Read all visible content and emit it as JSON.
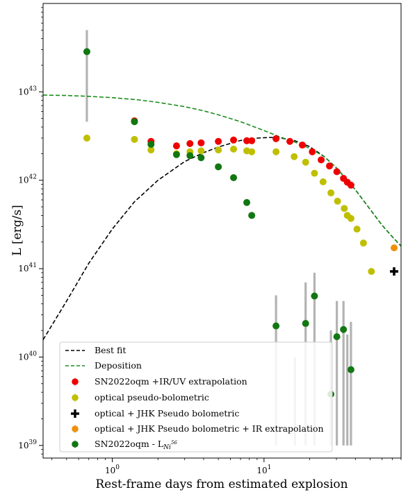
{
  "chart_data": {
    "type": "scatter",
    "xlabel": "Rest-frame days from estimated explosion",
    "ylabel": "L [erg/s]",
    "xscale": "log",
    "yscale": "log",
    "xlim": [
      0.35,
      80
    ],
    "ylim": [
      7.2e+38,
      1e+44
    ],
    "x_ticks": [
      {
        "value": 1,
        "base": "10",
        "exp": "0"
      },
      {
        "value": 10,
        "base": "10",
        "exp": "1"
      }
    ],
    "y_ticks": [
      {
        "value": 1e+39,
        "base": "10",
        "exp": "39"
      },
      {
        "value": 1e+40,
        "base": "10",
        "exp": "40"
      },
      {
        "value": 1e+41,
        "base": "10",
        "exp": "41"
      },
      {
        "value": 1e+42,
        "base": "10",
        "exp": "42"
      },
      {
        "value": 1e+43,
        "base": "10",
        "exp": "43"
      }
    ],
    "legend_position": "lower-left",
    "lines": [
      {
        "name": "Best fit",
        "color": "#000000",
        "style": "dashed",
        "points": [
          [
            0.35,
            1.57e+40
          ],
          [
            0.5,
            4.3e+40
          ],
          [
            0.7,
            1.15e+41
          ],
          [
            1.0,
            2.8e+41
          ],
          [
            1.4,
            5.7e+41
          ],
          [
            2.0,
            1e+42
          ],
          [
            3.0,
            1.63e+42
          ],
          [
            4.0,
            2.05e+42
          ],
          [
            5.0,
            2.38e+42
          ],
          [
            7.0,
            2.82e+42
          ],
          [
            9.0,
            3e+42
          ],
          [
            11.0,
            3.05e+42
          ],
          [
            13.0,
            3e+42
          ],
          [
            16.0,
            2.8e+42
          ],
          [
            20.0,
            2.4e+42
          ],
          [
            25.0,
            1.85e+42
          ],
          [
            30.0,
            1.38e+42
          ],
          [
            35.0,
            1.02e+42
          ],
          [
            40.0,
            7.8e+41
          ],
          [
            50.0,
            4.7e+41
          ],
          [
            60.0,
            3.1e+41
          ],
          [
            70.0,
            2.3e+41
          ],
          [
            80.0,
            1.8e+41
          ]
        ]
      },
      {
        "name": "Deposition",
        "color": "#1a8c1a",
        "style": "dashed",
        "points": [
          [
            0.35,
            9.2e+42
          ],
          [
            0.5,
            9.1e+42
          ],
          [
            0.7,
            8.9e+42
          ],
          [
            1.0,
            8.6e+42
          ],
          [
            1.5,
            8.1e+42
          ],
          [
            2.0,
            7.6e+42
          ],
          [
            3.0,
            6.8e+42
          ],
          [
            4.0,
            6.1e+42
          ],
          [
            5.0,
            5.5e+42
          ],
          [
            7.0,
            4.6e+42
          ],
          [
            10.0,
            3.65e+42
          ],
          [
            13.0,
            3.05e+42
          ],
          [
            16.0,
            2.7e+42
          ],
          [
            20.0,
            2.3e+42
          ],
          [
            25.0,
            1.85e+42
          ],
          [
            30.0,
            1.38e+42
          ],
          [
            35.0,
            1.02e+42
          ],
          [
            40.0,
            7.8e+41
          ],
          [
            50.0,
            4.7e+41
          ],
          [
            60.0,
            3.1e+41
          ],
          [
            70.0,
            2.3e+41
          ],
          [
            80.0,
            1.8e+41
          ]
        ]
      }
    ],
    "series": [
      {
        "name": "SN2022oqm +IR/UV extrapolation",
        "color": "#ee0000",
        "points": [
          [
            1.4,
            4.7e+42
          ],
          [
            1.8,
            2.75e+42
          ],
          [
            2.65,
            2.45e+42
          ],
          [
            3.25,
            2.6e+42
          ],
          [
            3.85,
            2.65e+42
          ],
          [
            5.0,
            2.75e+42
          ],
          [
            6.3,
            2.85e+42
          ],
          [
            7.7,
            2.8e+42
          ],
          [
            8.3,
            2.8e+42
          ],
          [
            12.0,
            2.95e+42
          ],
          [
            14.8,
            2.75e+42
          ],
          [
            17.9,
            2.5e+42
          ],
          [
            20.8,
            2.1e+42
          ],
          [
            23.8,
            1.7e+42
          ],
          [
            27.0,
            1.45e+42
          ],
          [
            30.2,
            1.25e+42
          ],
          [
            33.4,
            1.05e+42
          ],
          [
            35.4,
            9.5e+41
          ],
          [
            37.4,
            8.8e+41
          ]
        ]
      },
      {
        "name": "optical pseudo-bolometric",
        "color": "#bfbf00",
        "points": [
          [
            0.68,
            3e+42
          ],
          [
            1.4,
            2.9e+42
          ],
          [
            1.8,
            2.2e+42
          ],
          [
            2.65,
            2e+42
          ],
          [
            3.25,
            2.1e+42
          ],
          [
            3.85,
            2.15e+42
          ],
          [
            5.0,
            2.2e+42
          ],
          [
            6.3,
            2.25e+42
          ],
          [
            7.7,
            2.15e+42
          ],
          [
            8.3,
            2.1e+42
          ],
          [
            12.0,
            2.1e+42
          ],
          [
            15.8,
            1.85e+42
          ],
          [
            18.8,
            1.6e+42
          ],
          [
            21.5,
            1.2e+42
          ],
          [
            24.5,
            9.6e+41
          ],
          [
            27.6,
            7.2e+41
          ],
          [
            30.5,
            5.8e+41
          ],
          [
            33.8,
            4.8e+41
          ],
          [
            35.4,
            4e+41
          ],
          [
            37.4,
            3.7e+41
          ],
          [
            41.0,
            2.8e+41
          ],
          [
            45.2,
            1.95e+41
          ],
          [
            51.0,
            9.3e+40
          ]
        ]
      },
      {
        "name": "optical + JHK Pseudo bolometric",
        "color": "#000000",
        "marker": "plus",
        "points": [
          [
            72.0,
            9.3e+40
          ]
        ]
      },
      {
        "name": "optical + JHK Pseudo bolometric + IR extrapolation",
        "color": "#f0900a",
        "points": [
          [
            72.0,
            1.72e+41
          ]
        ]
      },
      {
        "name": "SN2022oqm - L",
        "name_subscript": "Ni",
        "name_superscript": "56",
        "color": "#117711",
        "points": [
          [
            0.68,
            2.85e+43,
            5e+43,
            4.6e+42
          ],
          [
            1.4,
            4.6e+42,
            null,
            null
          ],
          [
            1.8,
            2.55e+42,
            null,
            null
          ],
          [
            2.65,
            1.95e+42,
            null,
            null
          ],
          [
            3.25,
            1.9e+42,
            null,
            null
          ],
          [
            3.85,
            1.8e+42,
            null,
            null
          ],
          [
            5.0,
            1.42e+42,
            null,
            null
          ],
          [
            6.3,
            1.07e+42,
            null,
            null
          ],
          [
            7.7,
            5.6e+41,
            null,
            null
          ],
          [
            8.3,
            4e+41,
            null,
            null
          ],
          [
            12.0,
            2.25e+40,
            5e+40,
            1e+39
          ],
          [
            18.8,
            2.4e+40,
            7e+40,
            1e+39
          ],
          [
            21.5,
            4.9e+40,
            9e+40,
            1e+39
          ],
          [
            27.6,
            3.8e+39,
            2e+40,
            1e+39
          ],
          [
            30.2,
            1.7e+40,
            4.3e+40,
            1e+39
          ],
          [
            33.4,
            2.05e+40,
            4.3e+40,
            1e+39
          ],
          [
            37.4,
            7.2e+39,
            2.5e+40,
            1e+39
          ]
        ]
      }
    ],
    "error_only_bars": [
      {
        "x": 16.0,
        "hi": 1e+40,
        "lo": 1e+39
      },
      {
        "x": 35.4,
        "hi": 1.8e+40,
        "lo": 1e+39
      }
    ]
  }
}
